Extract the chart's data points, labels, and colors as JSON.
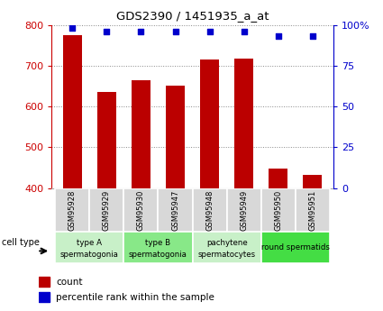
{
  "title": "GDS2390 / 1451935_a_at",
  "samples": [
    "GSM95928",
    "GSM95929",
    "GSM95930",
    "GSM95947",
    "GSM95948",
    "GSM95949",
    "GSM95950",
    "GSM95951"
  ],
  "counts": [
    775,
    635,
    665,
    652,
    715,
    718,
    447,
    432
  ],
  "percentile_ranks": [
    98,
    96,
    96,
    96,
    96,
    96,
    93,
    93
  ],
  "ylim_left": [
    400,
    800
  ],
  "ylim_right": [
    0,
    100
  ],
  "yticks_left": [
    400,
    500,
    600,
    700,
    800
  ],
  "yticks_right": [
    0,
    25,
    50,
    75,
    100
  ],
  "bar_color": "#bb0000",
  "dot_color": "#0000cc",
  "cell_types": [
    {
      "label": "type A\nspermatogonia",
      "start": 0,
      "end": 2,
      "color": "#c8f0c8"
    },
    {
      "label": "type B\nspermatogonia",
      "start": 2,
      "end": 4,
      "color": "#88e888"
    },
    {
      "label": "pachytene\nspermatocytes",
      "start": 4,
      "end": 6,
      "color": "#c8f0c8"
    },
    {
      "label": "round spermatids",
      "start": 6,
      "end": 8,
      "color": "#44dd44"
    }
  ],
  "left_axis_color": "#cc0000",
  "right_axis_color": "#0000cc",
  "cell_type_label": "cell type",
  "bg_color": "#ffffff",
  "sample_bg_color": "#d8d8d8",
  "grid_color": "#888888",
  "bar_width": 0.55
}
